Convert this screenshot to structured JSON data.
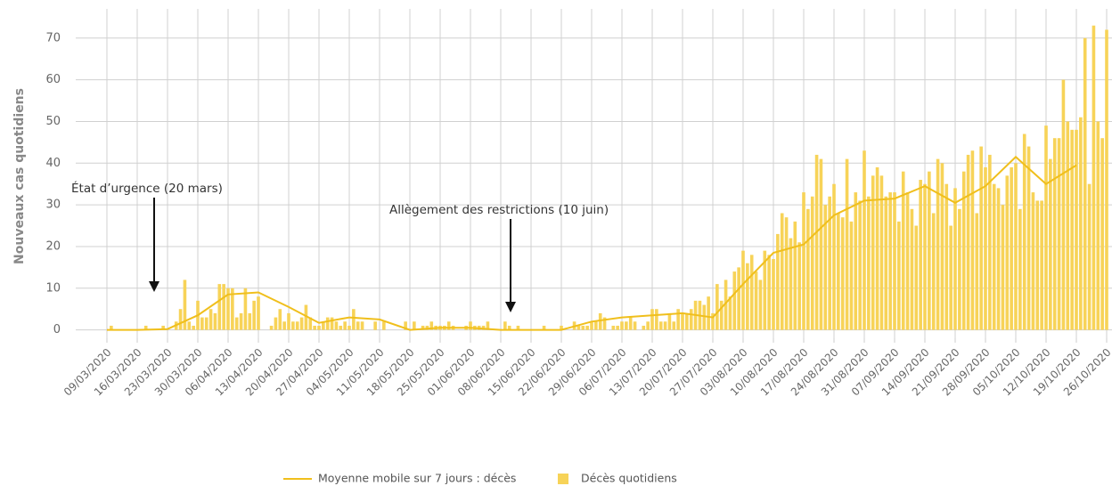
{
  "chart_data": {
    "type": "bar",
    "ylabel": "Nouveaux cas quotidiens",
    "ylim": [
      -2,
      77
    ],
    "yticks": [
      0,
      10,
      20,
      30,
      40,
      50,
      60,
      70
    ],
    "grid": true,
    "legend": "bottom",
    "annotations": [
      {
        "text": "État d’urgence (20 mars)",
        "x": "23/03/2020"
      },
      {
        "text": "Allègement des restrictions (10 juin)",
        "x": "15/06/2020"
      }
    ],
    "categories": [
      "09/03/2020",
      null,
      null,
      null,
      null,
      null,
      null,
      "16/03/2020",
      null,
      null,
      null,
      null,
      null,
      null,
      "23/03/2020",
      null,
      null,
      null,
      null,
      null,
      null,
      "30/03/2020",
      null,
      null,
      null,
      null,
      null,
      null,
      "06/04/2020",
      null,
      null,
      null,
      null,
      null,
      null,
      "13/04/2020",
      null,
      null,
      null,
      null,
      null,
      null,
      "20/04/2020",
      null,
      null,
      null,
      null,
      null,
      null,
      "27/04/2020",
      null,
      null,
      null,
      null,
      null,
      null,
      "04/05/2020",
      null,
      null,
      null,
      null,
      null,
      null,
      "11/05/2020",
      null,
      null,
      null,
      null,
      null,
      null,
      "18/05/2020",
      null,
      null,
      null,
      null,
      null,
      null,
      "25/05/2020",
      null,
      null,
      null,
      null,
      null,
      null,
      "01/06/2020",
      null,
      null,
      null,
      null,
      null,
      null,
      "08/06/2020",
      null,
      null,
      null,
      null,
      null,
      null,
      "15/06/2020",
      null,
      null,
      null,
      null,
      null,
      null,
      "22/06/2020",
      null,
      null,
      null,
      null,
      null,
      null,
      "29/06/2020",
      null,
      null,
      null,
      null,
      null,
      null,
      "06/07/2020",
      null,
      null,
      null,
      null,
      null,
      null,
      "13/07/2020",
      null,
      null,
      null,
      null,
      null,
      null,
      "20/07/2020",
      null,
      null,
      null,
      null,
      null,
      null,
      "27/07/2020",
      null,
      null,
      null,
      null,
      null,
      null,
      "03/08/2020",
      null,
      null,
      null,
      null,
      null,
      null,
      "10/08/2020",
      null,
      null,
      null,
      null,
      null,
      null,
      "17/08/2020",
      null,
      null,
      null,
      null,
      null,
      null,
      "24/08/2020",
      null,
      null,
      null,
      null,
      null,
      null,
      "31/08/2020",
      null,
      null,
      null,
      null,
      null,
      null,
      "07/09/2020",
      null,
      null,
      null,
      null,
      null,
      null,
      "14/09/2020",
      null,
      null,
      null,
      null,
      null,
      null,
      "21/09/2020",
      null,
      null,
      null,
      null,
      null,
      null,
      "28/09/2020",
      null,
      null,
      null,
      null,
      null,
      null,
      "05/10/2020",
      null,
      null,
      null,
      null,
      null,
      null,
      "12/10/2020",
      null,
      null,
      null,
      null,
      null,
      null,
      "19/10/2020",
      null,
      null,
      null,
      null,
      null,
      null,
      "26/10/2020"
    ],
    "series": [
      {
        "name": "Moyenne mobile sur 7 jours : décès",
        "type": "line",
        "color": "#f0bf1c",
        "x": [
          "09/03/2020",
          "16/03/2020",
          "23/03/2020",
          "30/03/2020",
          "06/04/2020",
          "13/04/2020",
          "20/04/2020",
          "27/04/2020",
          "04/05/2020",
          "11/05/2020",
          "18/05/2020",
          "25/05/2020",
          "01/06/2020",
          "08/06/2020",
          "15/06/2020",
          "22/06/2020",
          "29/06/2020",
          "06/07/2020",
          "13/07/2020",
          "20/07/2020",
          "27/07/2020",
          "03/08/2020",
          "10/08/2020",
          "17/08/2020",
          "24/08/2020",
          "31/08/2020",
          "07/09/2020",
          "14/09/2020",
          "21/09/2020",
          "28/09/2020",
          "05/10/2020",
          "12/10/2020",
          "19/10/2020"
        ],
        "values": [
          0,
          0,
          0.2,
          3.5,
          8.5,
          9,
          5.5,
          1.7,
          3,
          2.5,
          0,
          0.5,
          0.5,
          0,
          0,
          0,
          2,
          3,
          3.5,
          4,
          3,
          11,
          18.5,
          20.5,
          27.5,
          31,
          31.5,
          34.5,
          30.5,
          34.5,
          41.5,
          35,
          39.5
        ]
      },
      {
        "name": "Décès quotidiens",
        "type": "bar",
        "color": "#f7d358",
        "values": [
          0,
          1,
          0,
          0,
          0,
          0,
          0,
          0,
          0,
          1,
          0,
          0,
          0,
          1,
          0,
          0,
          2,
          5,
          12,
          2,
          1,
          7,
          3,
          3,
          5,
          4,
          11,
          11,
          10,
          10,
          3,
          4,
          10,
          4,
          7,
          8,
          0,
          0,
          1,
          3,
          5,
          2,
          4,
          2,
          2,
          3,
          6,
          3,
          1,
          1,
          2,
          3,
          3,
          2,
          1,
          2,
          1,
          5,
          2,
          2,
          0,
          0,
          2,
          0,
          2,
          0,
          0,
          0,
          0,
          2,
          0,
          2,
          0,
          1,
          1,
          2,
          1,
          1,
          1,
          2,
          1,
          0,
          0,
          1,
          2,
          1,
          1,
          1,
          2,
          0,
          0,
          0,
          2,
          1,
          0,
          1,
          0,
          0,
          0,
          0,
          0,
          1,
          0,
          0,
          0,
          1,
          0,
          0,
          2,
          1,
          1,
          1,
          2,
          2,
          4,
          3,
          0,
          1,
          1,
          2,
          2,
          3,
          2,
          0,
          1,
          2,
          5,
          5,
          2,
          2,
          4,
          2,
          5,
          4,
          4,
          5,
          7,
          7,
          6,
          8,
          4,
          11,
          7,
          12,
          8,
          14,
          15,
          19,
          16,
          18,
          14,
          12,
          19,
          18,
          17,
          23,
          28,
          27,
          22,
          26,
          21,
          33,
          29,
          32,
          42,
          41,
          30,
          32,
          35,
          28,
          27,
          41,
          26,
          33,
          31,
          43,
          32,
          37,
          39,
          37,
          32,
          33,
          33,
          26,
          38,
          33,
          29,
          25,
          36,
          35,
          38,
          28,
          41,
          40,
          35,
          25,
          34,
          29,
          38,
          42,
          43,
          28,
          44,
          39,
          42,
          35,
          34,
          30,
          37,
          39,
          40,
          29,
          47,
          44,
          33,
          31,
          31,
          49,
          41,
          46,
          46,
          60,
          50,
          48,
          48,
          51,
          70,
          35,
          73,
          50,
          46,
          72
        ]
      }
    ]
  }
}
